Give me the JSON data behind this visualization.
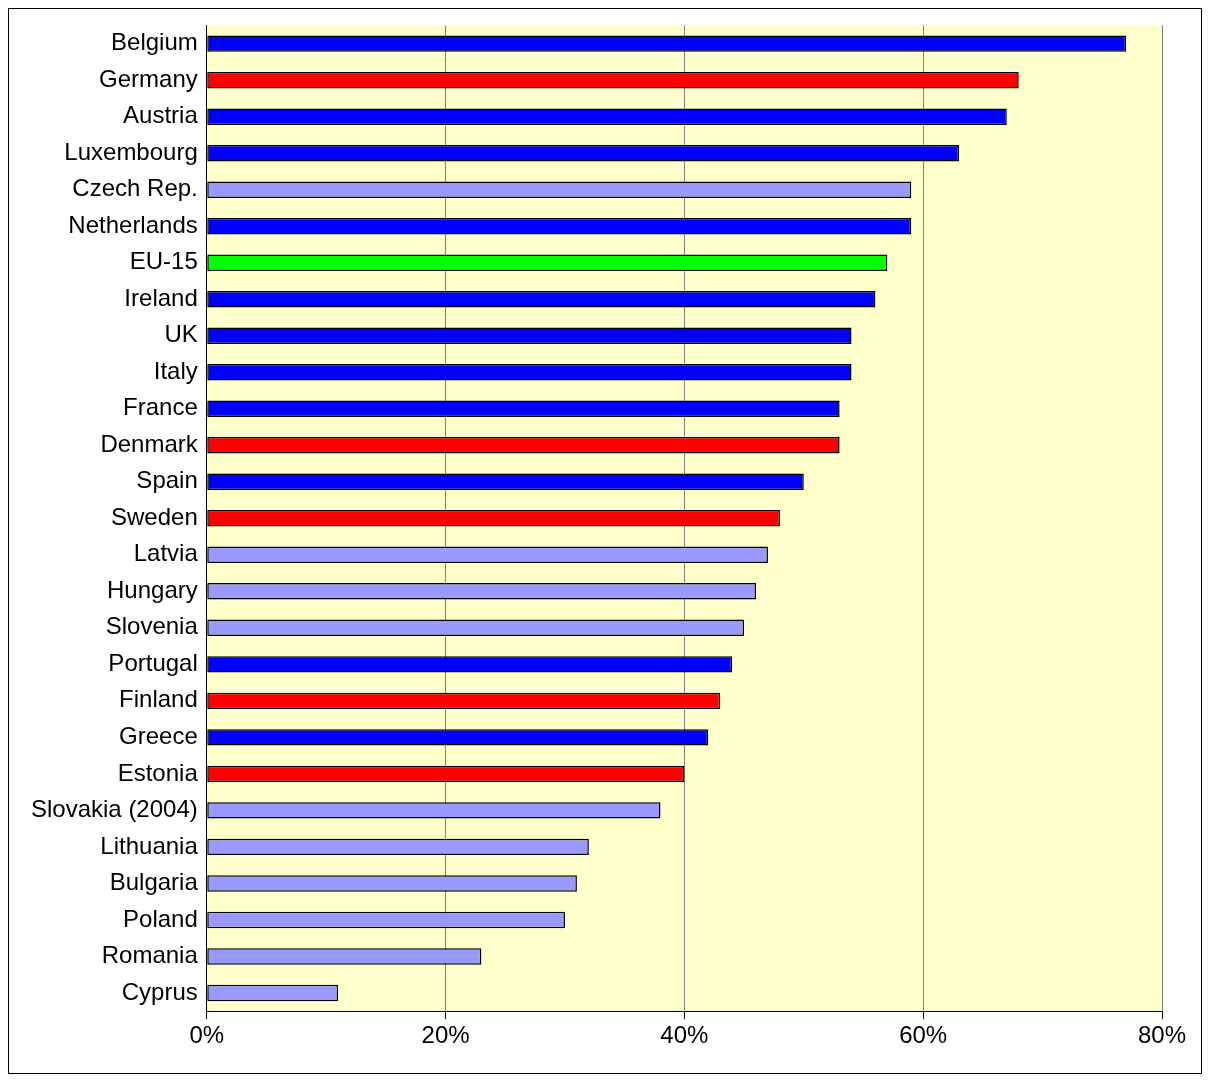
{
  "chart_data": {
    "type": "bar",
    "orientation": "horizontal",
    "categories": [
      "Belgium",
      "Germany",
      "Austria",
      "Luxembourg",
      "Czech Rep.",
      "Netherlands",
      "EU-15",
      "Ireland",
      "UK",
      "Italy",
      "France",
      "Denmark",
      "Spain",
      "Sweden",
      "Latvia",
      "Hungary",
      "Slovenia",
      "Portugal",
      "Finland",
      "Greece",
      "Estonia",
      "Slovakia (2004)",
      "Lithuania",
      "Bulgaria",
      "Poland",
      "Romania",
      "Cyprus"
    ],
    "values": [
      77,
      68,
      67,
      63,
      59,
      59,
      57,
      56,
      54,
      54,
      53,
      53,
      50,
      48,
      47,
      46,
      45,
      44,
      43,
      42,
      40,
      38,
      32,
      31,
      30,
      23,
      11
    ],
    "colors": [
      "#0000ff",
      "#ff0000",
      "#0000ff",
      "#0000ff",
      "#9999ff",
      "#0000ff",
      "#00ff00",
      "#0000ff",
      "#0000ff",
      "#0000ff",
      "#0000ff",
      "#ff0000",
      "#0000ff",
      "#ff0000",
      "#9999ff",
      "#9999ff",
      "#9999ff",
      "#0000ff",
      "#ff0000",
      "#0000ff",
      "#ff0000",
      "#9999ff",
      "#9999ff",
      "#9999ff",
      "#9999ff",
      "#9999ff",
      "#9999ff"
    ],
    "xlim": [
      0,
      80
    ],
    "xticks": [
      {
        "value": 0,
        "label": "0%"
      },
      {
        "value": 20,
        "label": "20%"
      },
      {
        "value": 40,
        "label": "40%"
      },
      {
        "value": 60,
        "label": "60%"
      },
      {
        "value": 80,
        "label": "80%"
      }
    ],
    "grid": "x",
    "legend": false
  }
}
